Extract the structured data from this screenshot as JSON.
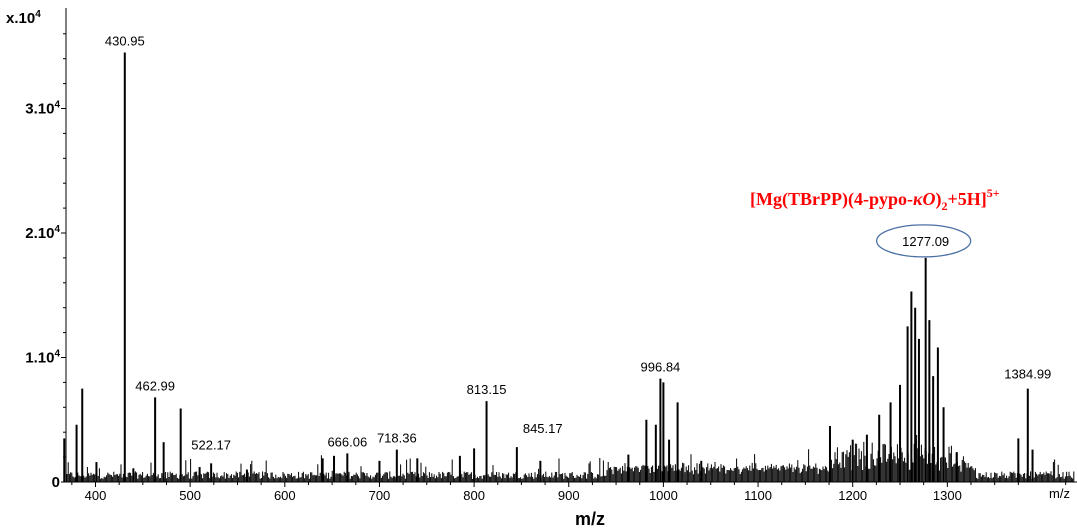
{
  "chart_data": {
    "type": "line",
    "title": "",
    "xlabel": "m/z",
    "xunit_label": "m/z",
    "ylabel": "",
    "ylim": [
      0,
      37000
    ],
    "xlim": [
      365,
      1440
    ],
    "grid": false,
    "y_multiplier_label": "x.10",
    "y_multiplier_exp": "4",
    "y_ticks": [
      {
        "value": 0,
        "label": "0",
        "exp": ""
      },
      {
        "value": 10000,
        "label": "1.10",
        "exp": "4"
      },
      {
        "value": 20000,
        "label": "2.10",
        "exp": "4"
      },
      {
        "value": 30000,
        "label": "3.10",
        "exp": "4"
      }
    ],
    "x_ticks": [
      {
        "value": 400,
        "label": "400"
      },
      {
        "value": 500,
        "label": "500"
      },
      {
        "value": 600,
        "label": "600"
      },
      {
        "value": 700,
        "label": "700"
      },
      {
        "value": 800,
        "label": "800"
      },
      {
        "value": 900,
        "label": "900"
      },
      {
        "value": 1000,
        "label": "1000"
      },
      {
        "value": 1100,
        "label": "1100"
      },
      {
        "value": 1200,
        "label": "1200"
      },
      {
        "value": 1300,
        "label": "1300"
      }
    ],
    "peaks": [
      {
        "mz": 367,
        "intensity": 3500
      },
      {
        "mz": 380,
        "intensity": 4600
      },
      {
        "mz": 386,
        "intensity": 7500
      },
      {
        "mz": 401,
        "intensity": 1600
      },
      {
        "mz": 430.95,
        "intensity": 34500,
        "label": "430.95"
      },
      {
        "mz": 440,
        "intensity": 1100
      },
      {
        "mz": 462.99,
        "intensity": 6800,
        "label": "462.99"
      },
      {
        "mz": 472,
        "intensity": 3200
      },
      {
        "mz": 490,
        "intensity": 5900
      },
      {
        "mz": 510,
        "intensity": 1200
      },
      {
        "mz": 522.17,
        "intensity": 1500,
        "label": "522.17"
      },
      {
        "mz": 560,
        "intensity": 1000
      },
      {
        "mz": 640,
        "intensity": 1900
      },
      {
        "mz": 652,
        "intensity": 2100
      },
      {
        "mz": 666.06,
        "intensity": 2300,
        "label": "666.06"
      },
      {
        "mz": 700,
        "intensity": 1700
      },
      {
        "mz": 718.36,
        "intensity": 2600,
        "label": "718.36"
      },
      {
        "mz": 740,
        "intensity": 1900
      },
      {
        "mz": 785,
        "intensity": 2100
      },
      {
        "mz": 800,
        "intensity": 2700
      },
      {
        "mz": 813.15,
        "intensity": 6500,
        "label": "813.15"
      },
      {
        "mz": 845.17,
        "intensity": 2800,
        "label": "845.17"
      },
      {
        "mz": 870,
        "intensity": 1700
      },
      {
        "mz": 963,
        "intensity": 2200
      },
      {
        "mz": 982,
        "intensity": 5000
      },
      {
        "mz": 992,
        "intensity": 4600
      },
      {
        "mz": 996.84,
        "intensity": 8300,
        "label": "996.84"
      },
      {
        "mz": 1000,
        "intensity": 8000
      },
      {
        "mz": 1006,
        "intensity": 3400
      },
      {
        "mz": 1015,
        "intensity": 6400
      },
      {
        "mz": 1040,
        "intensity": 1700
      },
      {
        "mz": 1176,
        "intensity": 4500
      },
      {
        "mz": 1200,
        "intensity": 3400
      },
      {
        "mz": 1215,
        "intensity": 3800
      },
      {
        "mz": 1228,
        "intensity": 5400
      },
      {
        "mz": 1240,
        "intensity": 6400
      },
      {
        "mz": 1250,
        "intensity": 7800
      },
      {
        "mz": 1258,
        "intensity": 12500
      },
      {
        "mz": 1262,
        "intensity": 15300
      },
      {
        "mz": 1266,
        "intensity": 14000
      },
      {
        "mz": 1270,
        "intensity": 11500
      },
      {
        "mz": 1277.09,
        "intensity": 18000,
        "label": "1277.09"
      },
      {
        "mz": 1281,
        "intensity": 13000
      },
      {
        "mz": 1285,
        "intensity": 8500
      },
      {
        "mz": 1290,
        "intensity": 10800
      },
      {
        "mz": 1296,
        "intensity": 6000
      },
      {
        "mz": 1310,
        "intensity": 2400
      },
      {
        "mz": 1375,
        "intensity": 3500
      },
      {
        "mz": 1384.99,
        "intensity": 7500,
        "label": "1384.99"
      },
      {
        "mz": 1390,
        "intensity": 2600
      }
    ],
    "annotation": {
      "text_main": "[Mg(TBrPP)(4-pypo-",
      "text_italic": "κO",
      "text_close": ")",
      "subscript": "2",
      "text_tail": "+5H]",
      "superscript": "5+",
      "target_label": "1277.09",
      "color": "#ff0000",
      "ellipse_color": "#4a6fa5"
    }
  }
}
